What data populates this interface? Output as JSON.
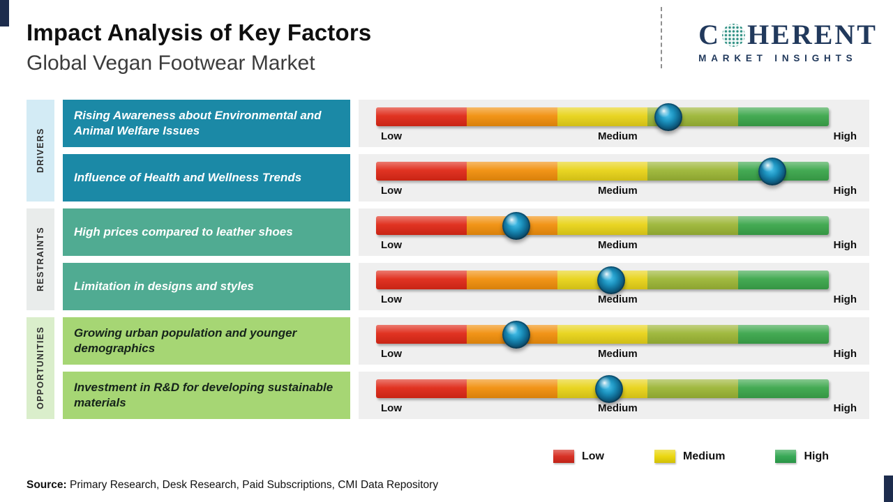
{
  "header": {
    "title": "Impact Analysis of Key Factors",
    "subtitle": "Global Vegan Footwear Market"
  },
  "brand": {
    "name_prefix": "C",
    "name_suffix": "HERENT",
    "globe_icon": "dotted-globe-o-icon",
    "tagline": "MARKET INSIGHTS",
    "color": "#21395c"
  },
  "categories": [
    {
      "label": "DRIVERS",
      "bg": "#d3ebf5",
      "factor_bg": "#1b89a6"
    },
    {
      "label": "RESTRAINTS",
      "bg": "#e9eceb",
      "factor_bg": "#50ab92"
    },
    {
      "label": "OPPORTUNITIES",
      "bg": "#daeecb",
      "factor_bg": "#a6d674"
    }
  ],
  "rows": [
    {
      "category": "DRIVERS",
      "factor": "Rising Awareness about Environmental and Animal Welfare Issues",
      "pos_pct": 64.5
    },
    {
      "category": "DRIVERS",
      "factor": "Influence of Health and Wellness Trends",
      "pos_pct": 87.5
    },
    {
      "category": "RESTRAINTS",
      "factor": "High prices compared to leather shoes",
      "pos_pct": 31
    },
    {
      "category": "RESTRAINTS",
      "factor": "Limitation in designs and styles",
      "pos_pct": 52
    },
    {
      "category": "OPPORTUNITIES",
      "factor": "Growing urban population and younger demographics",
      "pos_pct": 31
    },
    {
      "category": "OPPORTUNITIES",
      "factor": "Investment in R&D for developing sustainable materials",
      "pos_pct": 51.5
    }
  ],
  "scale": {
    "labels": [
      "Low",
      "Medium",
      "High"
    ],
    "bar_colors": [
      "#df2917",
      "#f18f0c",
      "#e8d318",
      "#9cb636",
      "#3ba64b"
    ]
  },
  "legend": [
    {
      "label": "Low",
      "color": "#d5271b"
    },
    {
      "label": "Medium",
      "color": "#e9d506"
    },
    {
      "label": "High",
      "color": "#2ea44e"
    }
  ],
  "source": {
    "label": "Source:",
    "text": " Primary Research, Desk Research, Paid Subscriptions, CMI Data Repository"
  },
  "chart_data": {
    "type": "bar",
    "orientation": "horizontal",
    "title": "Impact Analysis of Key Factors",
    "subtitle": "Global Vegan Footwear Market",
    "scale": {
      "ticks": [
        "Low",
        "Medium",
        "High"
      ],
      "range_pct": [
        0,
        100
      ]
    },
    "legend": [
      "Low",
      "Medium",
      "High"
    ],
    "legend_position": "bottom-right",
    "series": [
      {
        "category": "Drivers",
        "factor": "Rising Awareness about Environmental and Animal Welfare Issues",
        "impact_position_pct": 64.5,
        "impact_level": "Medium-High"
      },
      {
        "category": "Drivers",
        "factor": "Influence of Health and Wellness Trends",
        "impact_position_pct": 87.5,
        "impact_level": "High"
      },
      {
        "category": "Restraints",
        "factor": "High prices compared to leather shoes",
        "impact_position_pct": 31,
        "impact_level": "Low-Medium"
      },
      {
        "category": "Restraints",
        "factor": "Limitation in designs and styles",
        "impact_position_pct": 52,
        "impact_level": "Medium"
      },
      {
        "category": "Opportunities",
        "factor": "Growing urban population and younger demographics",
        "impact_position_pct": 31,
        "impact_level": "Low-Medium"
      },
      {
        "category": "Opportunities",
        "factor": "Investment in R&D for developing sustainable materials",
        "impact_position_pct": 51.5,
        "impact_level": "Medium"
      }
    ]
  }
}
